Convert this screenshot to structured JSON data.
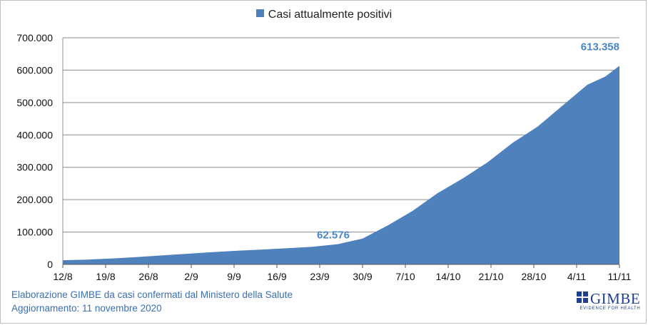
{
  "chart_data": {
    "type": "area",
    "series": [
      {
        "name": "Casi attualmente positivi",
        "color": "#4f81bd",
        "points": [
          [
            0,
            13000
          ],
          [
            7,
            15000
          ],
          [
            14,
            18500
          ],
          [
            21,
            23000
          ],
          [
            28,
            28000
          ],
          [
            35,
            33000
          ],
          [
            42,
            38000
          ],
          [
            49,
            42500
          ],
          [
            56,
            46000
          ],
          [
            63,
            50000
          ],
          [
            70,
            54500
          ],
          [
            77,
            62576
          ],
          [
            84,
            80000
          ],
          [
            91,
            120000
          ],
          [
            98,
            165000
          ],
          [
            105,
            220000
          ],
          [
            112,
            265000
          ],
          [
            119,
            315000
          ],
          [
            126,
            375000
          ],
          [
            133,
            425000
          ],
          [
            140,
            490000
          ],
          [
            147,
            555000
          ],
          [
            152,
            580000
          ],
          [
            156,
            613358
          ]
        ]
      }
    ],
    "x_tick_labels": [
      "12/8",
      "19/8",
      "26/8",
      "2/9",
      "9/9",
      "16/9",
      "23/9",
      "30/9",
      "7/10",
      "14/10",
      "21/10",
      "28/10",
      "4/11",
      "11/11"
    ],
    "y_tick_labels": [
      "0",
      "100.000",
      "200.000",
      "300.000",
      "400.000",
      "500.000",
      "600.000",
      "700.000"
    ],
    "ylim": [
      0,
      700000
    ],
    "xlim": [
      0,
      156
    ],
    "grid": true,
    "legend_position": "top-center",
    "annotations": [
      {
        "text": "62.576",
        "x": 77,
        "y": 62576
      },
      {
        "text": "613.358",
        "x": 156,
        "y": 613358
      }
    ]
  },
  "footer": {
    "line1": "Elaborazione GIMBE da casi confermati dal Ministero della Salute",
    "line2": "Aggiornamento: 11 novembre 2020"
  },
  "logo": {
    "name": "GIMBE",
    "tagline": "EVIDENCE FOR HEALTH"
  }
}
